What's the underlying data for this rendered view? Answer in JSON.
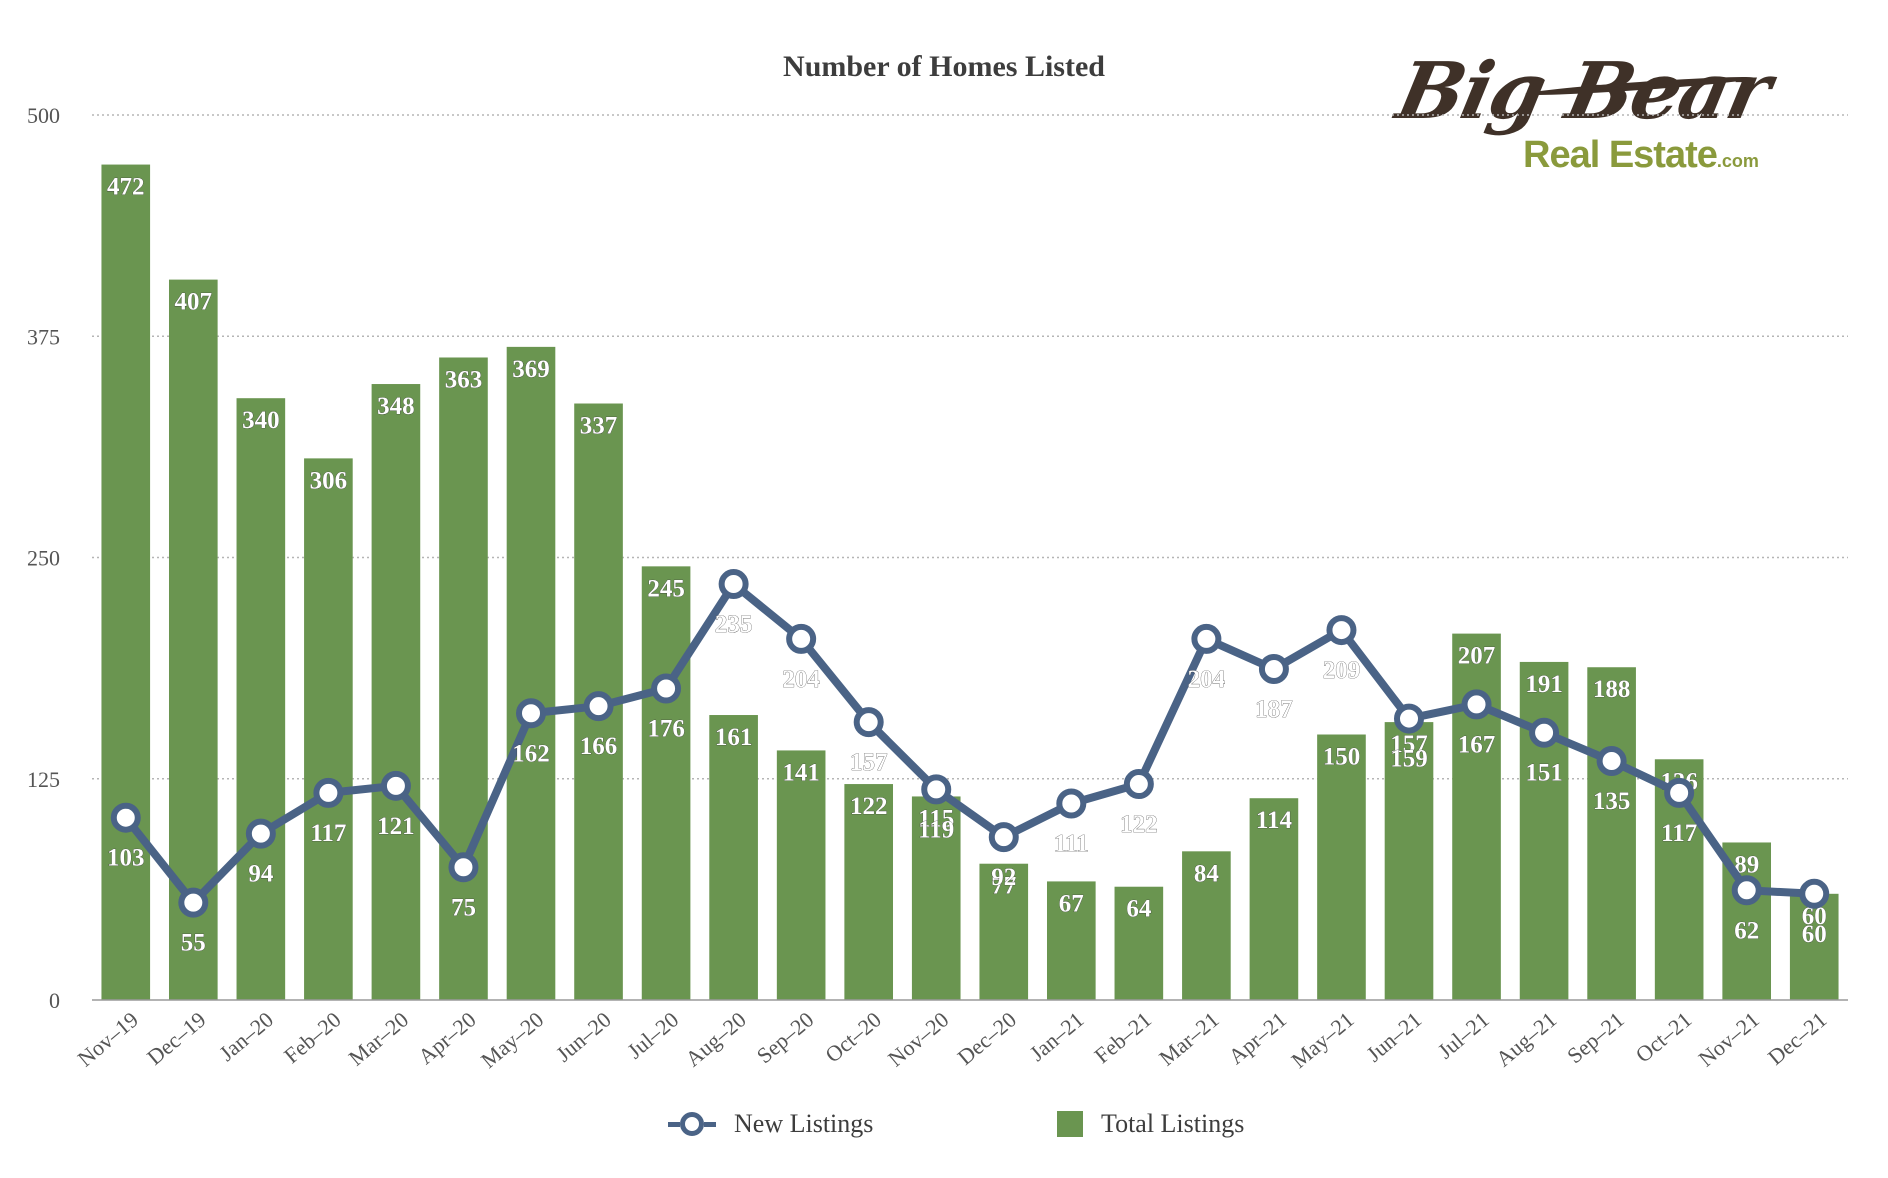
{
  "chart_data": {
    "type": "bar",
    "title": "Number of Homes Listed",
    "xlabel": "",
    "ylabel": "",
    "ylim": [
      0,
      500
    ],
    "yticks": [
      0,
      125,
      250,
      375,
      500
    ],
    "grid": true,
    "legend_position": "bottom",
    "categories": [
      "Nov–19",
      "Dec–19",
      "Jan–20",
      "Feb–20",
      "Mar–20",
      "Apr–20",
      "May–20",
      "Jun–20",
      "Jul–20",
      "Aug–20",
      "Sep–20",
      "Oct–20",
      "Nov–20",
      "Dec–20",
      "Jan–21",
      "Feb–21",
      "Mar–21",
      "Apr–21",
      "May–21",
      "Jun–21",
      "Jul–21",
      "Aug–21",
      "Sep–21",
      "Oct–21",
      "Nov–21",
      "Dec–21"
    ],
    "series": [
      {
        "name": "Total Listings",
        "type": "bar",
        "color": "#6a9550",
        "values": [
          472,
          407,
          340,
          306,
          348,
          363,
          369,
          337,
          245,
          161,
          141,
          122,
          115,
          77,
          67,
          64,
          84,
          114,
          150,
          157,
          207,
          191,
          188,
          136,
          89,
          60
        ]
      },
      {
        "name": "New Listings",
        "type": "line",
        "color": "#4a6386",
        "values": [
          103,
          55,
          94,
          117,
          121,
          75,
          162,
          166,
          176,
          235,
          204,
          157,
          119,
          92,
          111,
          122,
          204,
          187,
          209,
          159,
          167,
          151,
          135,
          117,
          62,
          60
        ]
      }
    ]
  },
  "logo": {
    "script_text": "Big Bear",
    "sub_text": "Real Estate",
    "sub_suffix": ".com",
    "colors": {
      "script": "#3f3128",
      "sub": "#8a9a3c"
    }
  },
  "colors": {
    "grid": "#b5b5b5",
    "axis_text": "#555555",
    "label_text": "#ffffff"
  }
}
